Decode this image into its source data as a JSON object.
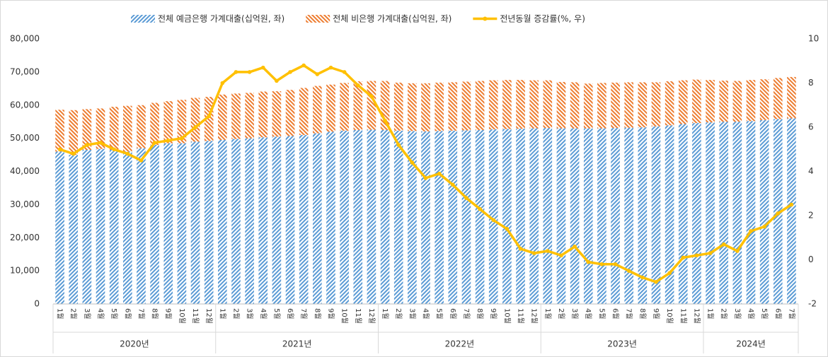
{
  "chart_data": {
    "type": "bar",
    "stacked": true,
    "categories": [
      "1월",
      "2월",
      "3월",
      "4월",
      "5월",
      "6월",
      "7월",
      "8월",
      "9월",
      "10월",
      "11월",
      "12월",
      "1월",
      "2월",
      "3월",
      "4월",
      "5월",
      "6월",
      "7월",
      "8월",
      "9월",
      "10월",
      "11월",
      "12월",
      "1월",
      "2월",
      "3월",
      "4월",
      "5월",
      "6월",
      "7월",
      "8월",
      "9월",
      "10월",
      "11월",
      "12월",
      "1월",
      "2월",
      "3월",
      "4월",
      "5월",
      "6월",
      "7월",
      "8월",
      "9월",
      "10월",
      "11월",
      "12월",
      "1월",
      "2월",
      "3월",
      "4월",
      "5월",
      "6월",
      "7월"
    ],
    "category_groups": [
      "2020년",
      "2021년",
      "2022년",
      "2023년",
      "2024년"
    ],
    "series": [
      {
        "name": "전체 예금은행 가계대출(십억원, 좌)",
        "type": "bar",
        "color": "#5b9bd5",
        "pattern": "hatch",
        "values": [
          46000,
          45000,
          46500,
          46800,
          46500,
          46000,
          47000,
          48000,
          48500,
          48500,
          49000,
          49200,
          49500,
          49800,
          50000,
          50300,
          50500,
          50700,
          51000,
          51500,
          52000,
          52300,
          52500,
          52600,
          52500,
          52300,
          52200,
          52100,
          52200,
          52300,
          52400,
          52500,
          52700,
          52800,
          52900,
          53000,
          53100,
          53000,
          53000,
          53000,
          53000,
          53100,
          53200,
          53300,
          53600,
          53900,
          54300,
          54600,
          54800,
          55000,
          55000,
          55200,
          55500,
          55800,
          56000
        ]
      },
      {
        "name": "전체 비은행 가계대출(십억원, 좌)",
        "type": "bar",
        "color": "#ed7d31",
        "pattern": "hatch",
        "values": [
          12600,
          13500,
          12300,
          12200,
          13000,
          13800,
          13000,
          12700,
          12700,
          13100,
          13200,
          13300,
          13700,
          13700,
          13700,
          13800,
          13700,
          13900,
          14200,
          14300,
          14200,
          14400,
          14700,
          14700,
          14800,
          14500,
          14400,
          14500,
          14600,
          14600,
          14700,
          14800,
          14800,
          14800,
          14700,
          14500,
          14400,
          14000,
          13900,
          13500,
          13700,
          13700,
          13700,
          13600,
          13300,
          13300,
          13200,
          13100,
          12800,
          12400,
          12300,
          12400,
          12300,
          12400,
          12500
        ]
      },
      {
        "name": "전년동월 증감률(%, 우)",
        "type": "line",
        "axis": "y2",
        "color": "#ffc000",
        "values": [
          5.0,
          4.8,
          5.2,
          5.3,
          5.0,
          4.8,
          4.5,
          5.3,
          5.4,
          5.5,
          6.0,
          6.5,
          8.0,
          8.5,
          8.5,
          8.7,
          8.1,
          8.5,
          8.8,
          8.4,
          8.7,
          8.5,
          7.9,
          7.4,
          6.3,
          5.2,
          4.4,
          3.7,
          3.9,
          3.4,
          2.8,
          2.3,
          1.8,
          1.4,
          0.5,
          0.3,
          0.4,
          0.2,
          0.6,
          -0.1,
          -0.2,
          -0.2,
          -0.5,
          -0.8,
          -1.0,
          -0.6,
          0.1,
          0.2,
          0.3,
          0.7,
          0.4,
          1.3,
          1.5,
          2.1,
          2.5
        ]
      }
    ],
    "ylim": [
      0,
      80000
    ],
    "yticks": [
      0,
      {
        "value": 10000,
        "label": "10,000"
      },
      {
        "value": 20000,
        "label": "20,000"
      },
      {
        "value": 30000,
        "label": "30,000"
      },
      {
        "value": 40000,
        "label": "40,000"
      },
      {
        "value": 50000,
        "label": "50,000"
      },
      {
        "value": 60000,
        "label": "60,000"
      },
      {
        "value": 70000,
        "label": "70,000"
      },
      {
        "value": 80000,
        "label": "80,000"
      }
    ],
    "y2lim": [
      -2,
      10
    ],
    "y2ticks": [
      -2,
      0,
      2,
      4,
      6,
      8,
      10
    ],
    "grid": false,
    "legend": "top"
  }
}
